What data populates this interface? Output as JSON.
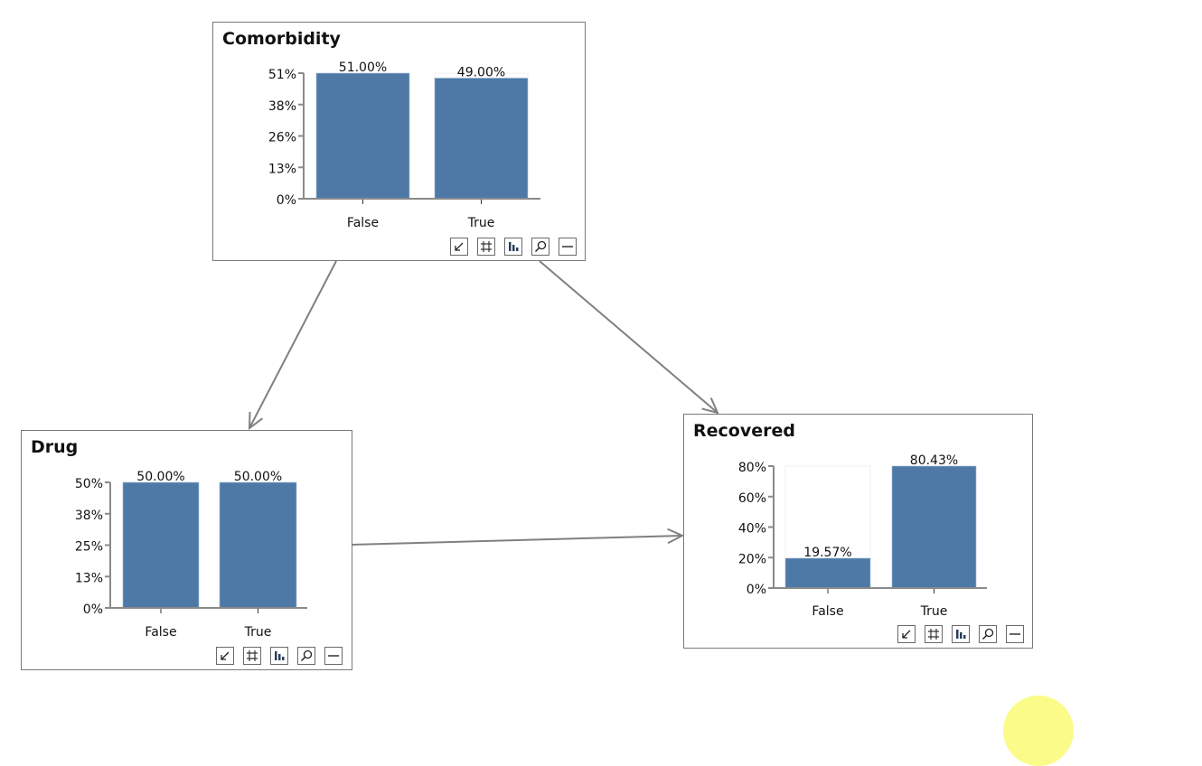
{
  "colors": {
    "bar": "#4e79a7",
    "edge": "#808080",
    "border": "#7a7a7a",
    "cursor_highlight": "#fbfb8a"
  },
  "toolbar_icons": [
    "arrow-down-left-icon",
    "grid-icon",
    "bar-chart-icon",
    "zoom-icon",
    "minimize-icon"
  ],
  "edges": [
    {
      "from": "Comorbidity",
      "to": "Drug"
    },
    {
      "from": "Comorbidity",
      "to": "Recovered"
    },
    {
      "from": "Drug",
      "to": "Recovered"
    }
  ],
  "chart_data": [
    {
      "type": "bar",
      "title": "Comorbidity",
      "categories": [
        "False",
        "True"
      ],
      "values": [
        51.0,
        49.0
      ],
      "value_labels": [
        "51.00%",
        "49.00%"
      ],
      "ylim": [
        0,
        51
      ],
      "yticks": [
        "0%",
        "13%",
        "26%",
        "38%",
        "51%"
      ]
    },
    {
      "type": "bar",
      "title": "Drug",
      "categories": [
        "False",
        "True"
      ],
      "values": [
        50.0,
        50.0
      ],
      "value_labels": [
        "50.00%",
        "50.00%"
      ],
      "ylim": [
        0,
        50
      ],
      "yticks": [
        "0%",
        "13%",
        "25%",
        "38%",
        "50%"
      ]
    },
    {
      "type": "bar",
      "title": "Recovered",
      "categories": [
        "False",
        "True"
      ],
      "values": [
        19.57,
        80.43
      ],
      "value_labels": [
        "19.57%",
        "80.43%"
      ],
      "ylim": [
        0,
        80
      ],
      "yticks": [
        "0%",
        "20%",
        "40%",
        "60%",
        "80%"
      ]
    }
  ]
}
